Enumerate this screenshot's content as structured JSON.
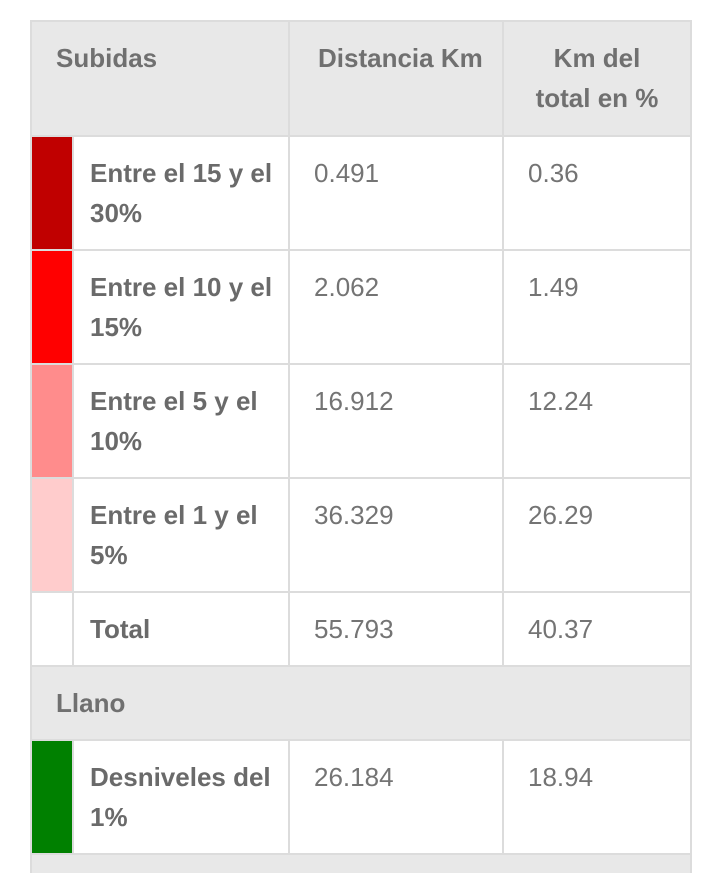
{
  "header": {
    "col1": "Subidas",
    "col2": "Distancia Km",
    "col3": "Km del total en %"
  },
  "climbs": [
    {
      "label": "Entre el 15 y el 30%",
      "km": "0.491",
      "pct": "0.36",
      "color": "#c00000"
    },
    {
      "label": "Entre el 10 y el 15%",
      "km": "2.062",
      "pct": "1.49",
      "color": "#ff0000"
    },
    {
      "label": "Entre el 5 y el 10%",
      "km": "16.912",
      "pct": "12.24",
      "color": "#ff8c8c"
    },
    {
      "label": "Entre el 1 y el 5%",
      "km": "36.329",
      "pct": "26.29",
      "color": "#ffcccc"
    }
  ],
  "total": {
    "label": "Total",
    "km": "55.793",
    "pct": "40.37",
    "color": "#ffffff"
  },
  "flat_section": "Llano",
  "flat": {
    "label": "Desniveles del 1%",
    "km": "26.184",
    "pct": "18.94",
    "color": "#008000"
  }
}
